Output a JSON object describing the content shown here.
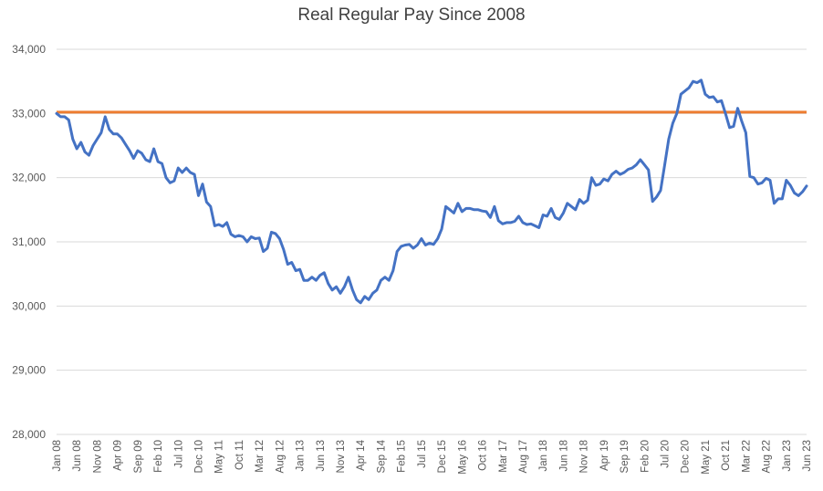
{
  "chart_data": {
    "type": "line",
    "title": "Real Regular Pay Since 2008",
    "xlabel": "",
    "ylabel": "",
    "ylim": [
      28000,
      34000
    ],
    "yticks": [
      28000,
      29000,
      30000,
      31000,
      32000,
      33000,
      34000
    ],
    "ytick_labels": [
      "28,000",
      "29,000",
      "30,000",
      "31,000",
      "32,000",
      "33,000",
      "34,000"
    ],
    "grid": true,
    "legend": "none",
    "xtick_labels": [
      "Jan 08",
      "Jun 08",
      "Nov 08",
      "Apr 09",
      "Sep 09",
      "Feb 10",
      "Jul 10",
      "Dec 10",
      "May 11",
      "Oct 11",
      "Mar 12",
      "Aug 12",
      "Jan 13",
      "Jun 13",
      "Nov 13",
      "Apr 14",
      "Sep 14",
      "Feb 15",
      "Jul 15",
      "Dec 15",
      "May 16",
      "Oct 16",
      "Mar 17",
      "Aug 17",
      "Jan 18",
      "Jun 18",
      "Nov 18",
      "Apr 19",
      "Sep 19",
      "Feb 20",
      "Jul 20",
      "Dec 20",
      "May 21",
      "Oct 21",
      "Mar 22",
      "Aug 22",
      "Jan 23",
      "Jun 23"
    ],
    "series": [
      {
        "color": "#4472c4",
        "x_start": "Jan 08",
        "frequency": "monthly",
        "values": [
          33000,
          32950,
          32950,
          32900,
          32600,
          32450,
          32550,
          32400,
          32350,
          32500,
          32600,
          32700,
          32950,
          32750,
          32680,
          32680,
          32620,
          32520,
          32420,
          32300,
          32420,
          32380,
          32280,
          32250,
          32450,
          32250,
          32220,
          32000,
          31920,
          31950,
          32150,
          32080,
          32150,
          32080,
          32050,
          31720,
          31900,
          31620,
          31550,
          31250,
          31270,
          31240,
          31300,
          31120,
          31080,
          31100,
          31080,
          31000,
          31080,
          31050,
          31060,
          30850,
          30900,
          31150,
          31130,
          31050,
          30880,
          30650,
          30680,
          30550,
          30570,
          30400,
          30400,
          30450,
          30400,
          30480,
          30520,
          30350,
          30250,
          30300,
          30200,
          30300,
          30450,
          30250,
          30100,
          30050,
          30150,
          30100,
          30200,
          30250,
          30400,
          30450,
          30400,
          30550,
          30850,
          30930,
          30950,
          30960,
          30900,
          30950,
          31050,
          30950,
          30980,
          30960,
          31050,
          31200,
          31550,
          31500,
          31450,
          31600,
          31470,
          31520,
          31520,
          31500,
          31500,
          31480,
          31470,
          31380,
          31550,
          31330,
          31280,
          31300,
          31300,
          31320,
          31400,
          31300,
          31270,
          31280,
          31250,
          31220,
          31420,
          31400,
          31520,
          31380,
          31350,
          31450,
          31600,
          31550,
          31500,
          31660,
          31600,
          31650,
          32000,
          31880,
          31900,
          31980,
          31950,
          32050,
          32100,
          32050,
          32080,
          32130,
          32150,
          32200,
          32280,
          32200,
          32120,
          31630,
          31700,
          31800,
          32200,
          32600,
          32850,
          33000,
          33300,
          33350,
          33400,
          33500,
          33480,
          33520,
          33300,
          33250,
          33260,
          33180,
          33200,
          33000,
          32780,
          32800,
          33080,
          32880,
          32700,
          32020,
          32000,
          31900,
          31920,
          31990,
          31960,
          31600,
          31670,
          31670,
          31960,
          31880,
          31760,
          31720,
          31780,
          31870
        ]
      },
      {
        "color": "#ed7d31",
        "type": "reference-line",
        "value": 33020
      }
    ]
  }
}
